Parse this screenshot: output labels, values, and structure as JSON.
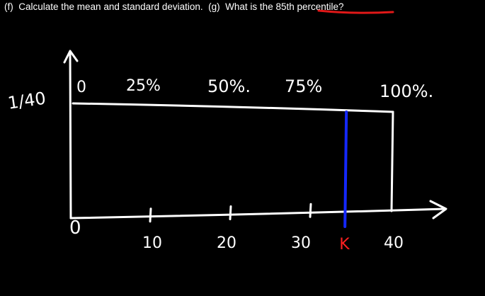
{
  "header": {
    "part_f": "(f)  Calculate the mean and standard deviation.",
    "part_g": "  (g)  What is the ",
    "highlight": "85th percentile",
    "end": "?"
  },
  "diagram": {
    "y_label": "1/40",
    "x_ticks": [
      {
        "value": 0,
        "label": "0"
      },
      {
        "value": 10,
        "label": "10"
      },
      {
        "value": 20,
        "label": "20"
      },
      {
        "value": 30,
        "label": "30"
      },
      {
        "value": 40,
        "label": "40"
      }
    ],
    "percent_labels": [
      {
        "value": 0,
        "label": "0"
      },
      {
        "value": 10,
        "label": "25%"
      },
      {
        "value": 20,
        "label": "50%."
      },
      {
        "value": 30,
        "label": "75%"
      },
      {
        "value": 40,
        "label": "100%."
      }
    ],
    "k_label": "K",
    "k_value": 34,
    "colors": {
      "ink": "#ffffff",
      "k_line": "#1428ff",
      "k_label": "#ff2020",
      "underline": "#e01818"
    }
  }
}
